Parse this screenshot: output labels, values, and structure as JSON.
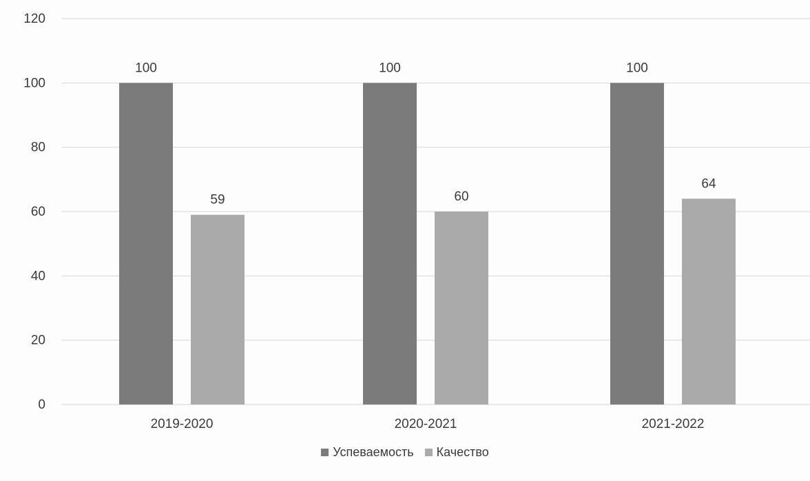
{
  "chart_data": {
    "type": "bar",
    "categories": [
      "2019-2020",
      "2020-2021",
      "2021-2022"
    ],
    "series": [
      {
        "name": "Успеваемость",
        "values": [
          100,
          100,
          100
        ],
        "color": "#7b7b7b"
      },
      {
        "name": "Качество",
        "values": [
          59,
          60,
          64
        ],
        "color": "#aaaaaa"
      }
    ],
    "title": "",
    "xlabel": "",
    "ylabel": "",
    "ylim": [
      0,
      120
    ],
    "yticks": [
      "0",
      "20",
      "40",
      "60",
      "80",
      "100",
      "120"
    ],
    "data_labels": [
      [
        "100",
        "100",
        "100"
      ],
      [
        "59",
        "60",
        "64"
      ]
    ],
    "grid": true,
    "legend_position": "bottom"
  }
}
